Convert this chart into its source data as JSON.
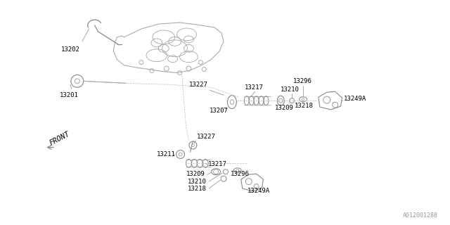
{
  "bg_color": "#ffffff",
  "line_color": "#888888",
  "text_color": "#000000",
  "watermark": "A012001288",
  "front_label": "FRONT",
  "ts": 6.5
}
